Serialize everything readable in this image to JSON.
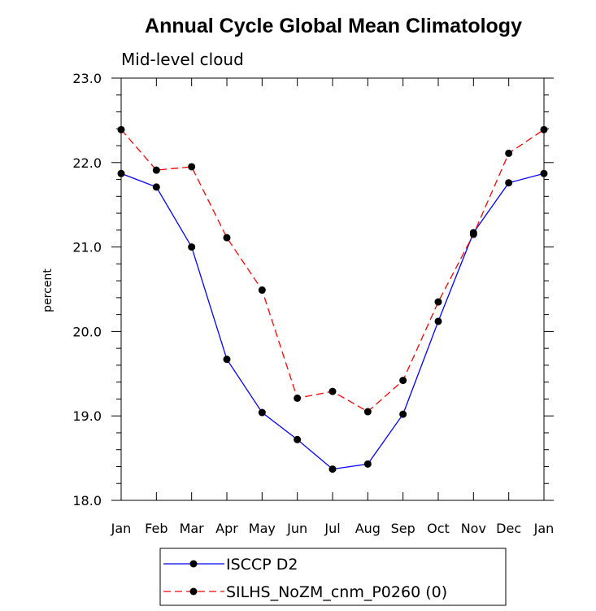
{
  "chart_data": {
    "type": "line",
    "title": "Annual Cycle Global Mean Climatology",
    "subtitle": "Mid-level cloud",
    "ylabel": "percent",
    "xlabel": "",
    "categories": [
      "Jan",
      "Feb",
      "Mar",
      "Apr",
      "May",
      "Jun",
      "Jul",
      "Aug",
      "Sep",
      "Oct",
      "Nov",
      "Dec",
      "Jan"
    ],
    "ylim": [
      18.0,
      23.0
    ],
    "yticks": [
      "18.0",
      "19.0",
      "20.0",
      "21.0",
      "22.0",
      "23.0"
    ],
    "grid": false,
    "legend_position": "bottom",
    "series": [
      {
        "name": "ISCCP D2",
        "color": "#0000ff",
        "dash": "solid",
        "values": [
          21.87,
          21.71,
          21.0,
          19.67,
          19.04,
          18.72,
          18.37,
          18.43,
          19.02,
          20.12,
          21.17,
          21.76,
          21.87
        ]
      },
      {
        "name": "SILHS_NoZM_cnm_P0260 (0)",
        "color": "#ff0000",
        "dash": "dashed",
        "values": [
          22.39,
          21.91,
          21.95,
          21.11,
          20.49,
          19.21,
          19.29,
          19.05,
          19.42,
          20.35,
          21.15,
          22.11,
          22.39
        ]
      }
    ]
  }
}
